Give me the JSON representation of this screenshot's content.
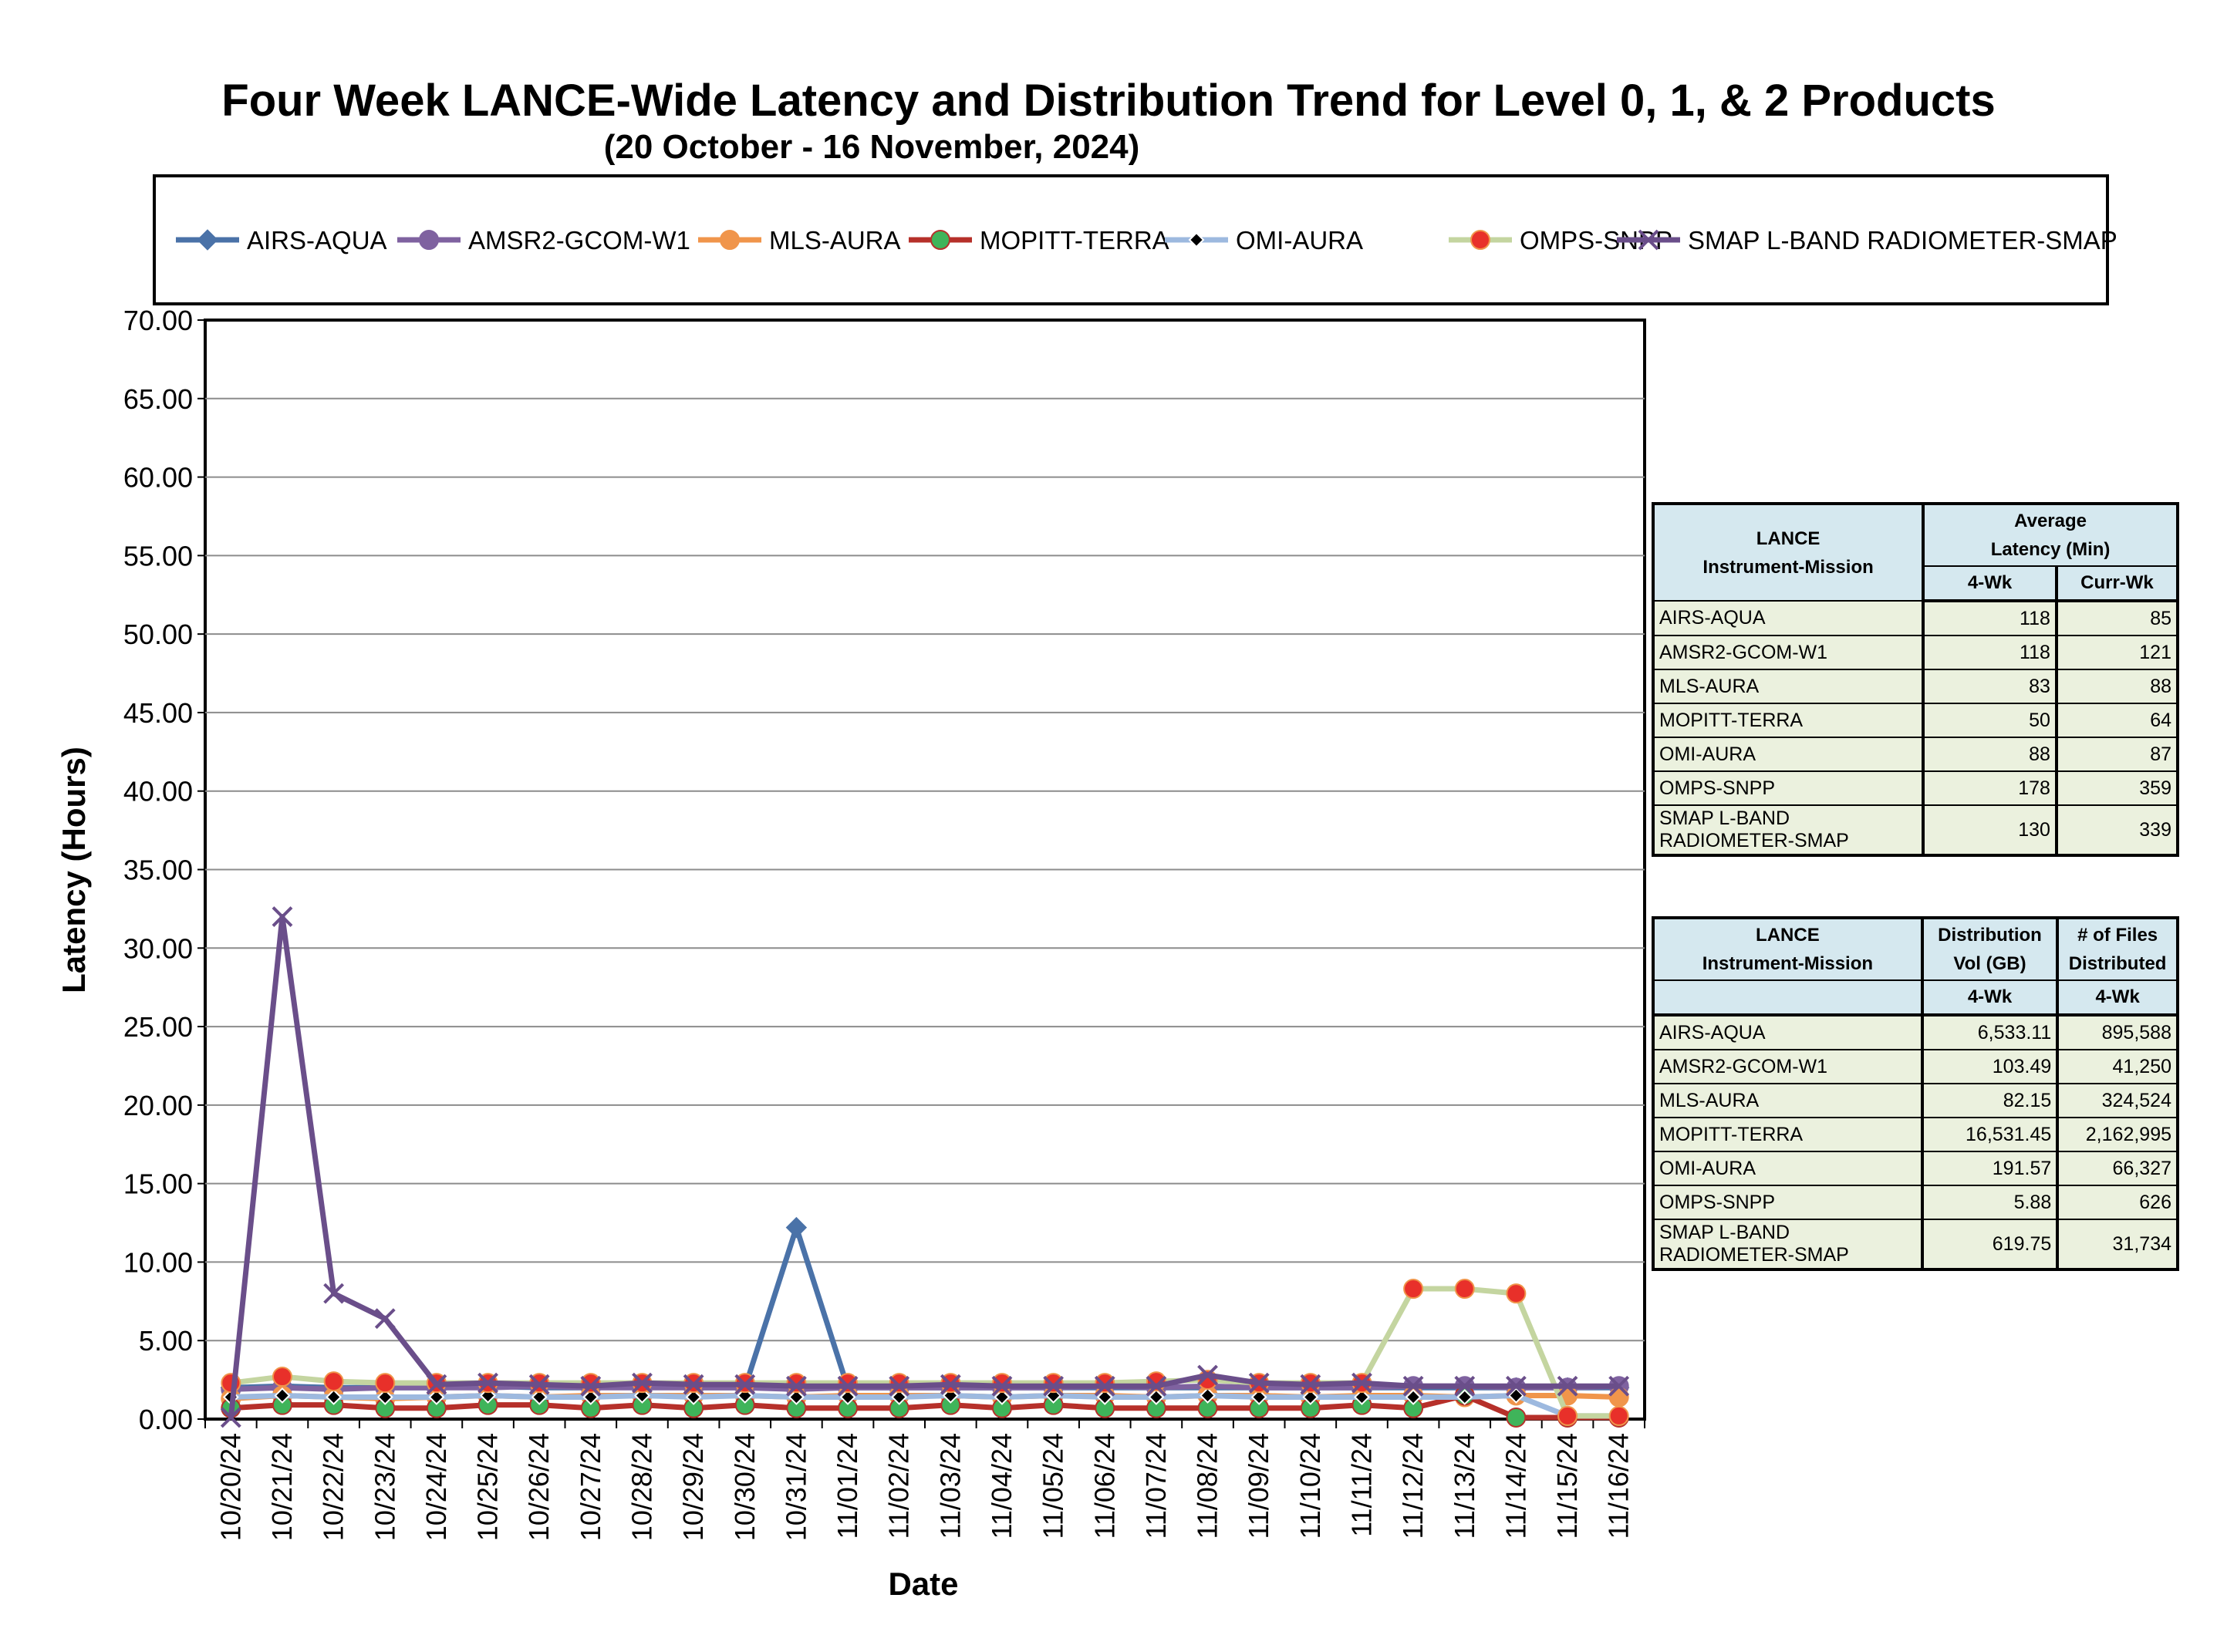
{
  "title": "Four Week LANCE-Wide Latency and Distribution Trend for Level 0, 1, & 2 Products",
  "subtitle": "(20  October    -  16  November,  2024)",
  "chart_data": {
    "type": "line",
    "title": "Four Week LANCE-Wide Latency and Distribution Trend for Level 0, 1, & 2 Products",
    "subtitle": "(20  October    -  16  November,  2024)",
    "xlabel": "Date",
    "ylabel": "Latency (Hours)",
    "ylim": [
      0,
      70
    ],
    "yticks": [
      "0.00",
      "5.00",
      "10.00",
      "15.00",
      "20.00",
      "25.00",
      "30.00",
      "35.00",
      "40.00",
      "45.00",
      "50.00",
      "55.00",
      "60.00",
      "65.00",
      "70.00"
    ],
    "grid": true,
    "legend_position": "top",
    "categories": [
      "10/20/24",
      "10/21/24",
      "10/22/24",
      "10/23/24",
      "10/24/24",
      "10/25/24",
      "10/26/24",
      "10/27/24",
      "10/28/24",
      "10/29/24",
      "10/30/24",
      "10/31/24",
      "11/01/24",
      "11/02/24",
      "11/03/24",
      "11/04/24",
      "11/05/24",
      "11/06/24",
      "11/07/24",
      "11/08/24",
      "11/09/24",
      "11/10/24",
      "11/11/24",
      "11/12/24",
      "11/13/24",
      "11/14/24",
      "11/15/24",
      "11/16/24"
    ],
    "series": [
      {
        "name": "AIRS-AQUA",
        "color": "#4a72a8",
        "marker": "diamond",
        "values": [
          2.0,
          2.1,
          2.0,
          2.0,
          2.0,
          2.1,
          2.0,
          2.0,
          2.1,
          2.0,
          2.0,
          12.2,
          2.0,
          2.0,
          2.0,
          2.0,
          2.0,
          2.0,
          2.0,
          2.0,
          2.0,
          2.0,
          2.0,
          2.0,
          2.0,
          2.0,
          2.0,
          2.0
        ]
      },
      {
        "name": "AMSR2-GCOM-W1",
        "color": "#7f62a0",
        "marker": "circle",
        "values": [
          1.9,
          2.0,
          1.9,
          2.0,
          2.0,
          2.0,
          2.1,
          2.0,
          2.0,
          2.0,
          2.0,
          1.9,
          2.0,
          2.0,
          2.0,
          2.0,
          2.0,
          2.1,
          2.0,
          2.1,
          2.0,
          2.0,
          2.0,
          2.1,
          2.1,
          2.0,
          2.0,
          2.1
        ]
      },
      {
        "name": "MLS-AURA",
        "color": "#f0954b",
        "marker": "circle",
        "values": [
          1.3,
          1.5,
          1.4,
          1.3,
          1.4,
          1.5,
          1.4,
          1.5,
          1.5,
          1.5,
          1.5,
          1.4,
          1.5,
          1.5,
          1.5,
          1.4,
          1.5,
          1.5,
          1.4,
          1.5,
          1.5,
          1.4,
          1.5,
          1.5,
          1.4,
          1.5,
          1.5,
          1.4
        ]
      },
      {
        "name": "MOPITT-TERRA",
        "color": "#b6302a",
        "marker": "circle",
        "values": [
          0.7,
          0.9,
          0.9,
          0.7,
          0.7,
          0.9,
          0.9,
          0.7,
          0.9,
          0.7,
          0.9,
          0.7,
          0.7,
          0.7,
          0.9,
          0.7,
          0.9,
          0.7,
          0.7,
          0.7,
          0.7,
          0.7,
          0.9,
          0.7,
          1.5,
          0.1,
          0.1,
          0.1
        ]
      },
      {
        "name": "OMI-AURA",
        "color": "#9db9df",
        "marker": "diamond-small",
        "values": [
          1.4,
          1.5,
          1.4,
          1.4,
          1.4,
          1.5,
          1.4,
          1.4,
          1.5,
          1.4,
          1.5,
          1.4,
          1.4,
          1.4,
          1.5,
          1.4,
          1.5,
          1.4,
          1.4,
          1.5,
          1.4,
          1.4,
          1.4,
          1.4,
          1.4,
          1.5,
          0.2,
          0.2
        ]
      },
      {
        "name": "OMPS-SNPP",
        "color": "#c4d5a0",
        "marker": "circle",
        "values": [
          2.3,
          2.7,
          2.4,
          2.3,
          2.3,
          2.3,
          2.3,
          2.3,
          2.3,
          2.3,
          2.3,
          2.3,
          2.3,
          2.3,
          2.3,
          2.3,
          2.3,
          2.3,
          2.4,
          2.5,
          2.3,
          2.3,
          2.3,
          8.3,
          8.3,
          8.0,
          0.2,
          0.2
        ]
      },
      {
        "name": "SMAP L-BAND RADIOMETER-SMAP",
        "color": "#6a4e8a",
        "marker": "x",
        "values": [
          0.1,
          32.0,
          8.0,
          6.4,
          2.2,
          2.3,
          2.2,
          2.1,
          2.3,
          2.2,
          2.2,
          2.1,
          2.1,
          2.1,
          2.2,
          2.1,
          2.1,
          2.1,
          2.1,
          2.8,
          2.3,
          2.2,
          2.3,
          2.1,
          2.1,
          2.1,
          2.1,
          2.1
        ]
      }
    ]
  },
  "latency_table": {
    "header_col1": [
      "LANCE",
      "Instrument-Mission"
    ],
    "header_group": [
      "Average",
      "Latency (Min)"
    ],
    "sub_4wk": "4-Wk",
    "sub_currwk": "Curr-Wk",
    "rows": [
      {
        "name": "AIRS-AQUA",
        "wk4": "118",
        "curr": "85"
      },
      {
        "name": "AMSR2-GCOM-W1",
        "wk4": "118",
        "curr": "121"
      },
      {
        "name": "MLS-AURA",
        "wk4": "83",
        "curr": "88"
      },
      {
        "name": "MOPITT-TERRA",
        "wk4": "50",
        "curr": "64"
      },
      {
        "name": "OMI-AURA",
        "wk4": "88",
        "curr": "87"
      },
      {
        "name": "OMPS-SNPP",
        "wk4": "178",
        "curr": "359"
      },
      {
        "name": "SMAP L-BAND RADIOMETER-SMAP",
        "wk4": "130",
        "curr": "339"
      }
    ]
  },
  "distribution_table": {
    "header_col1": [
      "LANCE",
      "Instrument-Mission"
    ],
    "header_col2": [
      "Distribution",
      "Vol (GB)"
    ],
    "header_col3": [
      "# of Files",
      "Distributed"
    ],
    "sub_4wk": "4-Wk",
    "sub_4wk_b": "4-Wk",
    "rows": [
      {
        "name": "AIRS-AQUA",
        "vol": "6,533.11",
        "files": "895,588"
      },
      {
        "name": "AMSR2-GCOM-W1",
        "vol": "103.49",
        "files": "41,250"
      },
      {
        "name": "MLS-AURA",
        "vol": "82.15",
        "files": "324,524"
      },
      {
        "name": "MOPITT-TERRA",
        "vol": "16,531.45",
        "files": "2,162,995"
      },
      {
        "name": "OMI-AURA",
        "vol": "191.57",
        "files": "66,327"
      },
      {
        "name": "OMPS-SNPP",
        "vol": "5.88",
        "files": "626"
      },
      {
        "name": "SMAP L-BAND RADIOMETER-SMAP",
        "vol": "619.75",
        "files": "31,734"
      }
    ]
  }
}
